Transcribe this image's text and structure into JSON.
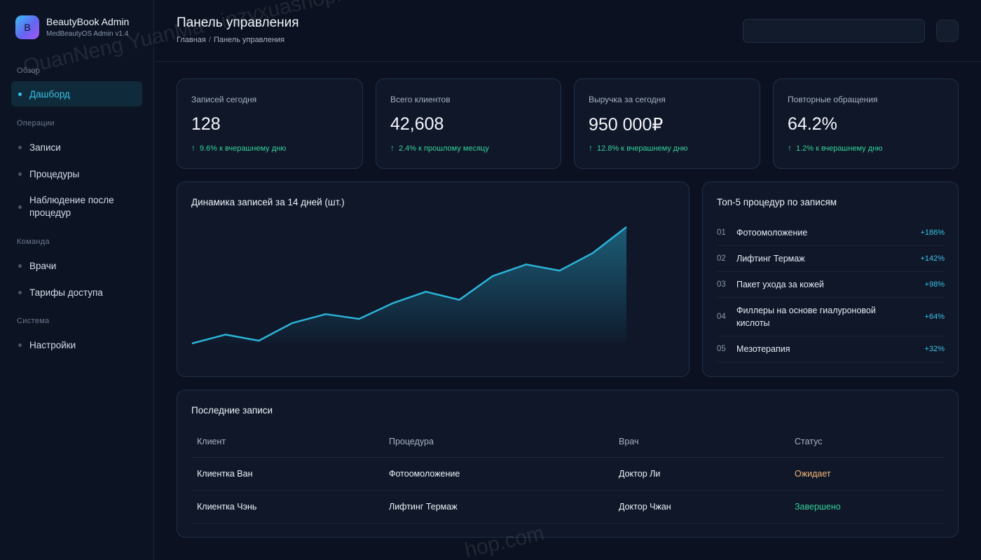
{
  "brand": {
    "logo_letter": "B",
    "title": "BeautyBook Admin",
    "subtitle": "MedBeautyOS Admin v1.4"
  },
  "sidebar": {
    "sections": [
      {
        "label": "Обзор",
        "items": [
          {
            "label": "Дашборд",
            "active": true
          }
        ]
      },
      {
        "label": "Операции",
        "items": [
          {
            "label": "Записи"
          },
          {
            "label": "Процедуры"
          },
          {
            "label": "Наблюдение после процедур"
          }
        ]
      },
      {
        "label": "Команда",
        "items": [
          {
            "label": "Врачи"
          },
          {
            "label": "Тарифы доступа"
          }
        ]
      },
      {
        "label": "Система",
        "items": [
          {
            "label": "Настройки"
          }
        ]
      }
    ]
  },
  "header": {
    "title": "Панель управления",
    "breadcrumb": [
      "Главная",
      "Панель управления"
    ],
    "search_placeholder": ""
  },
  "kpis": [
    {
      "label": "Записей сегодня",
      "value": "128",
      "delta": "9.6% к вчерашнему дню"
    },
    {
      "label": "Всего клиентов",
      "value": "42,608",
      "delta": "2.4% к прошлому месяцу"
    },
    {
      "label": "Выручка за сегодня",
      "value": "950 000₽",
      "delta": "12.8% к вчерашнему дню"
    },
    {
      "label": "Повторные обращения",
      "value": "64.2%",
      "delta": "1.2% к вчерашнему дню"
    }
  ],
  "chart_card": {
    "title": "Динамика записей за 14 дней (шт.)"
  },
  "chart_data": {
    "type": "area",
    "title": "Динамика записей за 14 дней (шт.)",
    "x": [
      1,
      2,
      3,
      4,
      5,
      6,
      7,
      8,
      9,
      10,
      11,
      12,
      13,
      14
    ],
    "values": [
      0,
      13,
      4,
      30,
      43,
      36,
      59,
      76,
      64,
      99,
      116,
      107,
      133,
      171
    ],
    "ylim": [
      0,
      175
    ],
    "color": "#2bb3d6",
    "grid": false,
    "legend": "none"
  },
  "top_procedures": {
    "title": "Топ-5 процедур по записям",
    "items": [
      {
        "num": "01",
        "name": "Фотоомоложение",
        "delta": "+186%"
      },
      {
        "num": "02",
        "name": "Лифтинг Термаж",
        "delta": "+142%"
      },
      {
        "num": "03",
        "name": "Пакет ухода за кожей",
        "delta": "+98%"
      },
      {
        "num": "04",
        "name": "Филлеры на основе гиалуроновой кислоты",
        "delta": "+64%"
      },
      {
        "num": "05",
        "name": "Мезотерапия",
        "delta": "+32%"
      }
    ]
  },
  "recent": {
    "title": "Последние записи",
    "columns": [
      "Клиент",
      "Процедура",
      "Врач",
      "Статус"
    ],
    "rows": [
      {
        "client": "Клиентка Ван",
        "procedure": "Фотоомоложение",
        "doctor": "Доктор Ли",
        "status": "Ожидает",
        "status_color": "#f5b879"
      },
      {
        "client": "Клиентка Чэнь",
        "procedure": "Лифтинг Термаж",
        "doctor": "Доктор Чжан",
        "status": "Завершено",
        "status_color": "#34d399"
      }
    ]
  },
  "watermarks": [
    "QuanNeng YuanMa · inzyxuashop.com",
    "hop.com"
  ],
  "colors": {
    "accent": "#38c3e6",
    "positive": "#34d399",
    "pending": "#f5b879",
    "background": "#0b1120"
  }
}
